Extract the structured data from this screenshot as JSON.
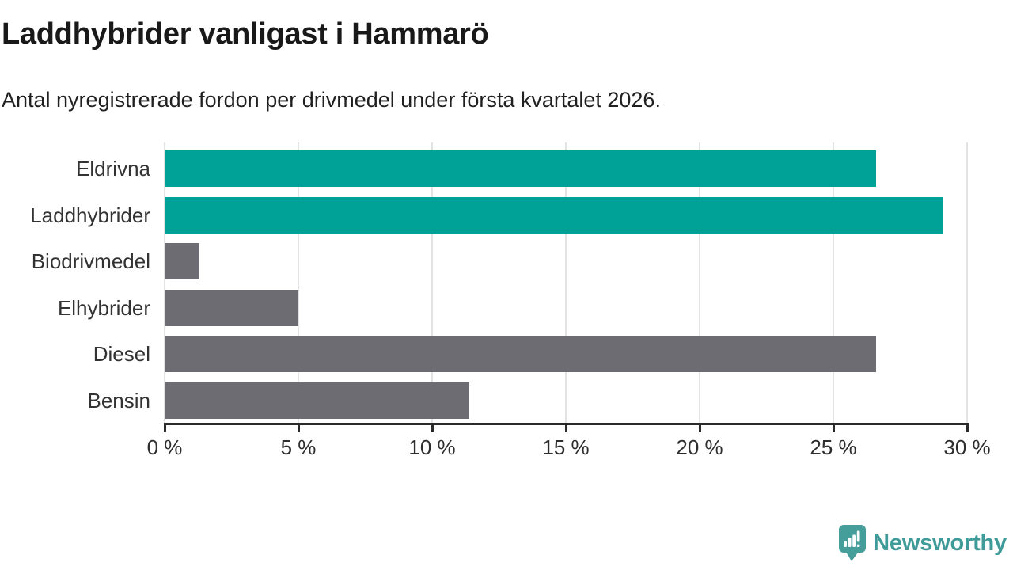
{
  "chart_data": {
    "type": "bar",
    "orientation": "horizontal",
    "title": "Laddhybrider vanligast i Hammarö",
    "subtitle": "Antal nyregistrerade fordon per drivmedel under första kvartalet 2026.",
    "categories": [
      "Eldrivna",
      "Laddhybrider",
      "Biodrivmedel",
      "Elhybrider",
      "Diesel",
      "Bensin"
    ],
    "values": [
      26.6,
      29.1,
      1.3,
      5.0,
      26.6,
      11.4
    ],
    "unit": "%",
    "xlim": [
      0,
      30
    ],
    "xticks": [
      0,
      5,
      10,
      15,
      20,
      25,
      30
    ],
    "xtick_labels": [
      "0 %",
      "5 %",
      "10 %",
      "15 %",
      "20 %",
      "25 %",
      "30 %"
    ],
    "bar_colors": [
      "#00A196",
      "#00A196",
      "#6C6C72",
      "#6C6C72",
      "#6C6C72",
      "#6C6C72"
    ],
    "colors": {
      "highlight": "#00A196",
      "default": "#6C6C72",
      "gridline": "#E3E3E3",
      "axis": "#2B2B2B",
      "title_text": "#191919",
      "label_text": "#333333"
    },
    "grid": true,
    "legend": false,
    "ylabel": "",
    "xlabel": ""
  },
  "branding": {
    "logo_text": "Newsworthy",
    "logo_color": "#3E9B98",
    "logo_icon": "newsworthy-speech-bubble-bar-chart-icon",
    "logo_icon_color": "#459E9A"
  }
}
